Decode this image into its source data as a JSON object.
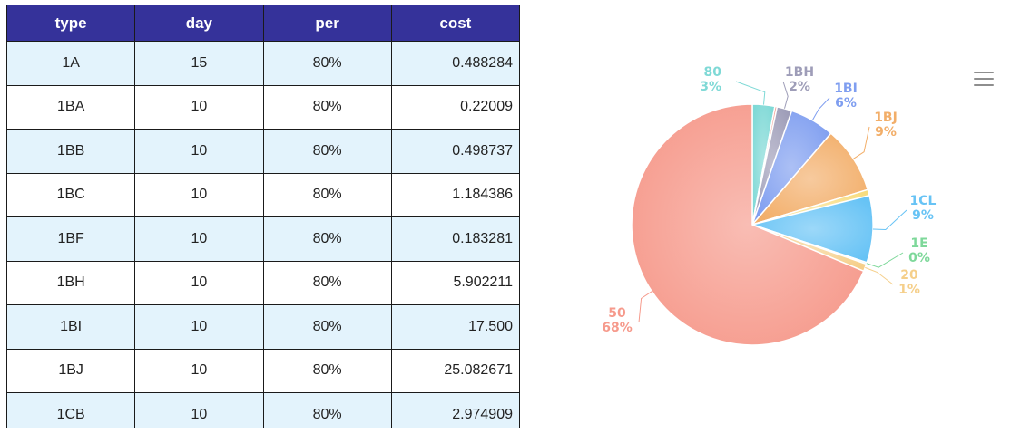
{
  "table": {
    "headers": [
      "type",
      "day",
      "per",
      "cost"
    ],
    "rows": [
      {
        "type": "1A",
        "day": "15",
        "per": "80%",
        "cost": "0.488284"
      },
      {
        "type": "1BA",
        "day": "10",
        "per": "80%",
        "cost": "0.22009"
      },
      {
        "type": "1BB",
        "day": "10",
        "per": "80%",
        "cost": "0.498737"
      },
      {
        "type": "1BC",
        "day": "10",
        "per": "80%",
        "cost": "1.184386"
      },
      {
        "type": "1BF",
        "day": "10",
        "per": "80%",
        "cost": "0.183281"
      },
      {
        "type": "1BH",
        "day": "10",
        "per": "80%",
        "cost": "5.902211"
      },
      {
        "type": "1BI",
        "day": "10",
        "per": "80%",
        "cost": "17.500"
      },
      {
        "type": "1BJ",
        "day": "10",
        "per": "80%",
        "cost": "25.082671"
      },
      {
        "type": "1CB",
        "day": "10",
        "per": "80%",
        "cost": "2.974909"
      }
    ],
    "header_color": "#35329a",
    "alt_row_color": "#e3f3fc"
  },
  "chart_menu": {
    "icon": "hamburger-menu-icon"
  },
  "chart_data": {
    "type": "pie",
    "title": "",
    "slices": [
      {
        "name": "80",
        "label": "3%",
        "value": 3,
        "color": "#7fd9d6"
      },
      {
        "name": "",
        "label": "",
        "value": 0.3,
        "color": "#f1a39a"
      },
      {
        "name": "1BH",
        "label": "2%",
        "value": 2,
        "color": "#9e9db8"
      },
      {
        "name": "1BI",
        "label": "6%",
        "value": 6,
        "color": "#7f9ef0"
      },
      {
        "name": "1BJ",
        "label": "9%",
        "value": 9,
        "color": "#f2ae69"
      },
      {
        "name": "",
        "label": "",
        "value": 0.8,
        "color": "#f7dc7f"
      },
      {
        "name": "1CL",
        "label": "9%",
        "value": 9,
        "color": "#67c3f5"
      },
      {
        "name": "1E",
        "label": "0%",
        "value": 0.2,
        "color": "#7ed89a"
      },
      {
        "name": "20",
        "label": "1%",
        "value": 1,
        "color": "#f5cf8a"
      },
      {
        "name": "50",
        "label": "68%",
        "value": 68.7,
        "color": "#f69a8c"
      }
    ]
  }
}
